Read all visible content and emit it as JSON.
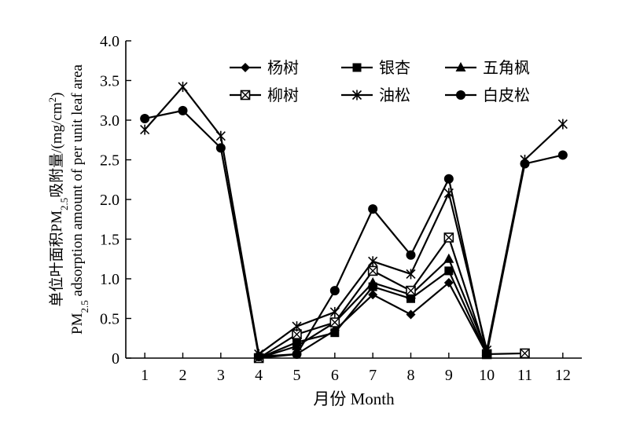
{
  "chart_data": {
    "type": "line",
    "x": [
      1,
      2,
      3,
      4,
      5,
      6,
      7,
      8,
      9,
      10,
      11,
      12
    ],
    "xlabel": "月份 Month",
    "ylabel_line1": "单位叶面积PM2.5吸附量/(mg/cm2)",
    "ylabel_line2": "PM2.5 adsorption amount of per unit leaf area",
    "ylim": [
      0,
      4.0
    ],
    "yticks": [
      "0",
      "0.5",
      "1.0",
      "1.5",
      "2.0",
      "2.5",
      "3.0",
      "3.5",
      "4.0"
    ],
    "xticks": [
      "1",
      "2",
      "3",
      "4",
      "5",
      "6",
      "7",
      "8",
      "9",
      "10",
      "11",
      "12"
    ],
    "grid": false,
    "legend_position": "top-right",
    "series": [
      {
        "name": "杨树",
        "marker": "diamond",
        "values": [
          null,
          null,
          null,
          0.0,
          0.05,
          0.35,
          0.8,
          0.55,
          0.95,
          0.05,
          null,
          null
        ]
      },
      {
        "name": "银杏",
        "marker": "square",
        "values": [
          null,
          null,
          null,
          0.0,
          0.2,
          0.32,
          0.9,
          0.75,
          1.1,
          0.05,
          null,
          null
        ]
      },
      {
        "name": "五角枫",
        "marker": "triangle",
        "values": [
          null,
          null,
          null,
          0.0,
          0.15,
          0.45,
          0.95,
          0.8,
          1.25,
          0.08,
          null,
          null
        ]
      },
      {
        "name": "柳树",
        "marker": "boxed-x",
        "values": [
          null,
          null,
          null,
          0.0,
          0.3,
          0.45,
          1.1,
          0.85,
          1.52,
          0.05,
          0.06,
          null
        ]
      },
      {
        "name": "油松",
        "marker": "asterisk",
        "values": [
          2.88,
          3.42,
          2.8,
          0.05,
          0.4,
          0.58,
          1.22,
          1.06,
          2.08,
          0.1,
          2.5,
          2.95
        ]
      },
      {
        "name": "白皮松",
        "marker": "circle",
        "values": [
          3.02,
          3.12,
          2.65,
          0.02,
          0.05,
          0.85,
          1.88,
          1.3,
          2.26,
          0.05,
          2.45,
          2.56
        ]
      }
    ]
  }
}
